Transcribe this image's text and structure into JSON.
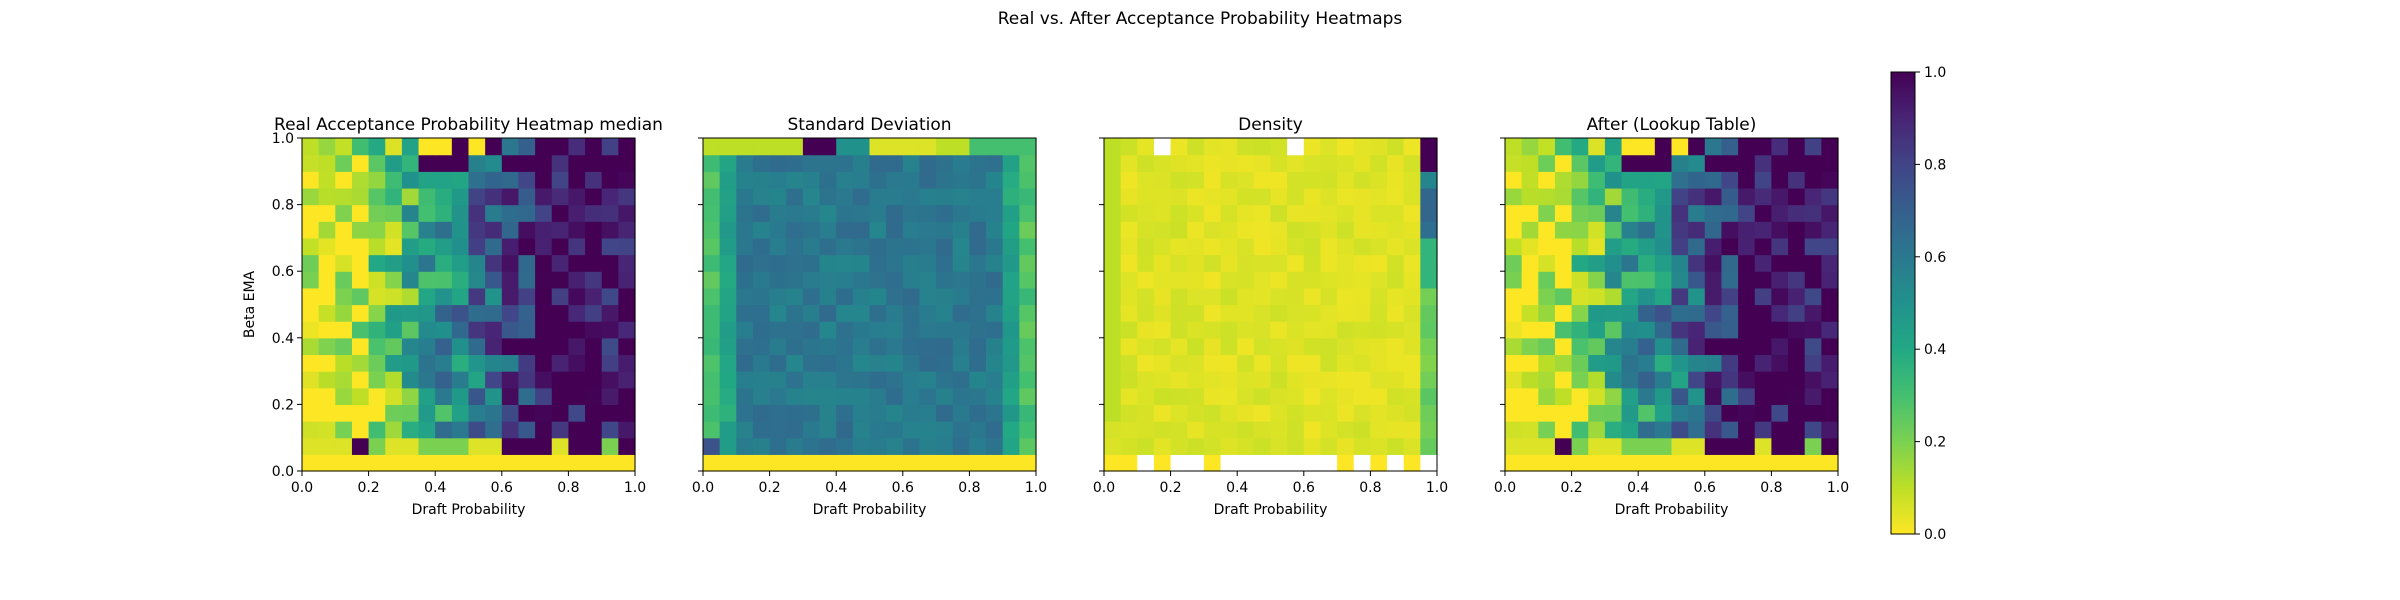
{
  "figure": {
    "suptitle": "Real vs. After Acceptance Probability Heatmaps"
  },
  "colorbar": {
    "colormap": "viridis_r",
    "range": [
      0.0,
      1.0
    ],
    "ticks": [
      "0.0",
      "0.2",
      "0.4",
      "0.6",
      "0.8",
      "1.0"
    ]
  },
  "chart_data": [
    {
      "type": "heatmap",
      "title": "Real Acceptance Probability Heatmap median",
      "xlabel": "Draft Probability",
      "ylabel": "Beta EMA",
      "xlim": [
        0,
        1
      ],
      "ylim": [
        0,
        1
      ],
      "xticks": [
        "0.0",
        "0.2",
        "0.4",
        "0.6",
        "0.8",
        "1.0"
      ],
      "yticks": [
        "0.0",
        "0.2",
        "0.4",
        "0.6",
        "0.8",
        "1.0"
      ],
      "show_ytick_labels": true,
      "grid_size": [
        20,
        20
      ],
      "generator": "acceptance_median",
      "value_range": [
        0,
        1
      ],
      "cmap": "viridis_r"
    },
    {
      "type": "heatmap",
      "title": "Standard Deviation",
      "xlabel": "Draft Probability",
      "ylabel": "",
      "xlim": [
        0,
        1
      ],
      "ylim": [
        0,
        1
      ],
      "xticks": [
        "0.0",
        "0.2",
        "0.4",
        "0.6",
        "0.8",
        "1.0"
      ],
      "yticks": [
        "0.0",
        "0.2",
        "0.4",
        "0.6",
        "0.8",
        "1.0"
      ],
      "show_ytick_labels": false,
      "grid_size": [
        20,
        20
      ],
      "generator": "std_dev",
      "value_range": [
        0,
        1
      ],
      "cmap": "viridis_r"
    },
    {
      "type": "heatmap",
      "title": "Density",
      "xlabel": "Draft Probability",
      "ylabel": "",
      "xlim": [
        0,
        1
      ],
      "ylim": [
        0,
        1
      ],
      "xticks": [
        "0.0",
        "0.2",
        "0.4",
        "0.6",
        "0.8",
        "1.0"
      ],
      "yticks": [
        "0.0",
        "0.2",
        "0.4",
        "0.6",
        "0.8",
        "1.0"
      ],
      "show_ytick_labels": false,
      "grid_size": [
        20,
        20
      ],
      "generator": "density",
      "value_range": [
        0,
        1
      ],
      "cmap": "viridis_r"
    },
    {
      "type": "heatmap",
      "title": "After (Lookup Table)",
      "xlabel": "Draft Probability",
      "ylabel": "",
      "xlim": [
        0,
        1
      ],
      "ylim": [
        0,
        1
      ],
      "xticks": [
        "0.0",
        "0.2",
        "0.4",
        "0.6",
        "0.8",
        "1.0"
      ],
      "yticks": [
        "0.0",
        "0.2",
        "0.4",
        "0.6",
        "0.8",
        "1.0"
      ],
      "show_ytick_labels": false,
      "grid_size": [
        20,
        20
      ],
      "generator": "acceptance_median",
      "value_range": [
        0,
        1
      ],
      "cmap": "viridis_r"
    }
  ]
}
